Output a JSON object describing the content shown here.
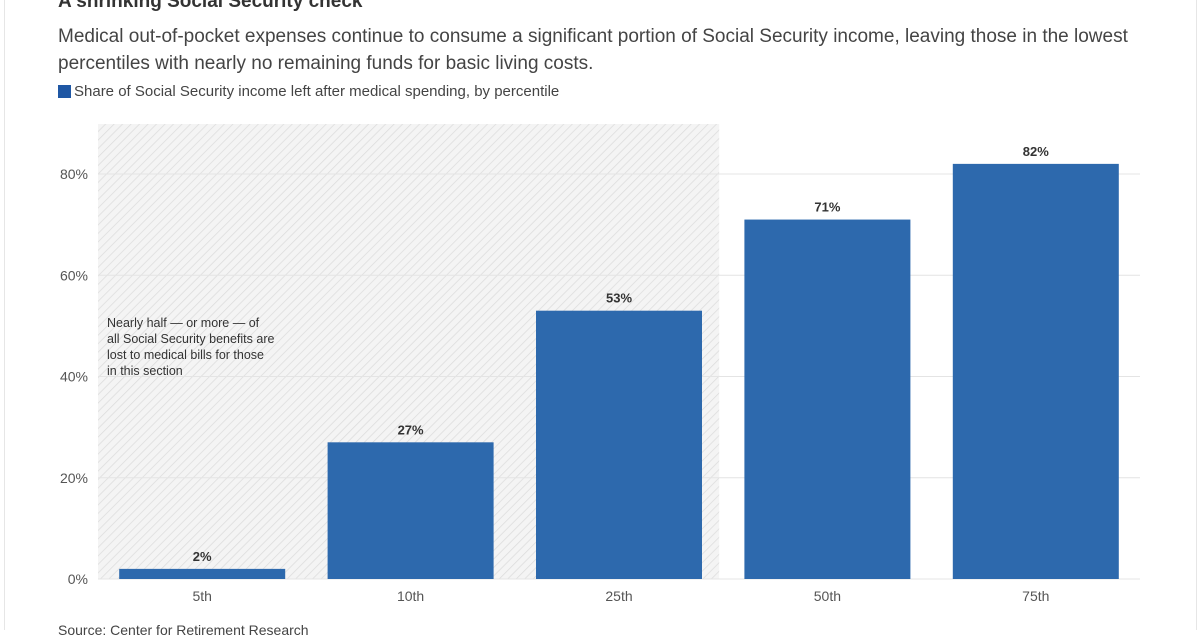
{
  "title": "A shrinking Social Security check",
  "subtitle": "Medical out-of-pocket expenses continue to consume a significant portion of Social Security income, leaving those in the lowest percentiles with nearly no remaining funds for basic living costs.",
  "source": "Source: Center for Retirement Research",
  "chart_data": {
    "type": "bar",
    "categories": [
      "5th",
      "10th",
      "25th",
      "50th",
      "75th"
    ],
    "series": [
      {
        "name": "Share of Social Security income left after medical spending, by percentile",
        "values": [
          2,
          27,
          53,
          71,
          82
        ],
        "color": "#2d69ad"
      }
    ],
    "data_labels": [
      "2%",
      "27%",
      "53%",
      "71%",
      "82%"
    ],
    "yticks": [
      "0%",
      "20%",
      "40%",
      "60%",
      "80%"
    ],
    "ylim": [
      0,
      90
    ],
    "grid": true,
    "legend": "top-left",
    "annotation": {
      "lines": [
        "Nearly half — or more — of",
        "all Social Security benefits are",
        "lost to medical bills for those",
        "in this section"
      ],
      "shaded_categories": [
        "5th",
        "10th",
        "25th"
      ]
    }
  }
}
